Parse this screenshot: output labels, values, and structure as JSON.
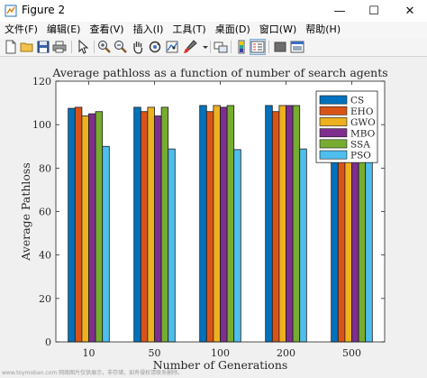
{
  "window": {
    "title": "Figure 2",
    "minimize_glyph": "—",
    "maximize_glyph": "☐",
    "close_glyph": "✕"
  },
  "menu": [
    "文件(F)",
    "编辑(E)",
    "查看(V)",
    "插入(I)",
    "工具(T)",
    "桌面(D)",
    "窗口(W)",
    "帮助(H)"
  ],
  "toolbar_icons": [
    "new-figure-icon",
    "open-folder-icon",
    "save-icon",
    "print-icon",
    "pointer-icon",
    "zoom-in-icon",
    "zoom-out-icon",
    "pan-hand-icon",
    "rotate-3d-icon",
    "data-cursor-icon",
    "brush-icon",
    "link-icon",
    "colorbar-icon",
    "legend-icon",
    "hide-tools-icon",
    "dock-icon"
  ],
  "watermark": "www.toymoban.com 网络图片仅供展示，非存储，如有侵权请联系删除。",
  "colors": {
    "CS": "#0072bd",
    "EHO": "#d95319",
    "GWO": "#edb120",
    "MBO": "#7e2f8e",
    "SSA": "#77ac30",
    "PSO": "#4dbeee"
  },
  "chart_data": {
    "type": "bar",
    "title": "Average pathloss as a function of number of search agents",
    "xlabel": "Number of Generations",
    "ylabel": "Average Pathloss",
    "categories": [
      "10",
      "50",
      "100",
      "200",
      "500"
    ],
    "ylim": [
      0,
      120
    ],
    "yticks": [
      0,
      20,
      40,
      60,
      80,
      100,
      120
    ],
    "grid": false,
    "legend_position": "top-right",
    "series": [
      {
        "name": "CS",
        "values": [
          107.5,
          108,
          108.8,
          108.8,
          108
        ]
      },
      {
        "name": "EHO",
        "values": [
          108,
          106,
          106,
          106,
          106
        ]
      },
      {
        "name": "GWO",
        "values": [
          104,
          108,
          108.8,
          108.8,
          108
        ]
      },
      {
        "name": "MBO",
        "values": [
          105,
          104,
          108,
          108.8,
          106
        ]
      },
      {
        "name": "SSA",
        "values": [
          106,
          108,
          108.8,
          108.8,
          108
        ]
      },
      {
        "name": "PSO",
        "values": [
          90,
          88.8,
          88.5,
          88.8,
          88.5
        ]
      }
    ]
  }
}
